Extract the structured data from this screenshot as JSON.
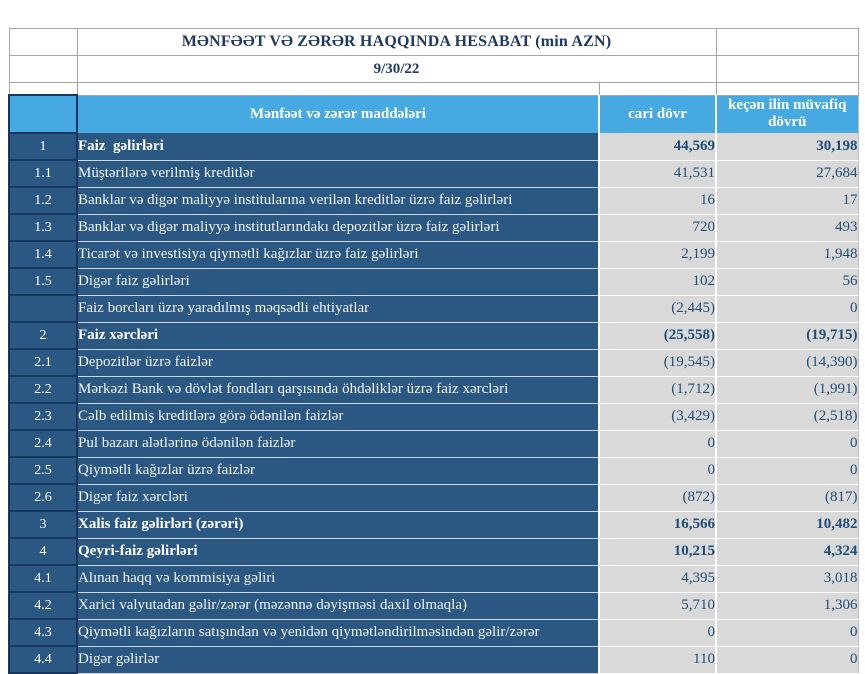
{
  "report": {
    "title": "MƏNFƏƏT VƏ ZƏRƏR HAQQINDA HESABAT (min AZN)",
    "date": "9/30/22"
  },
  "columns": {
    "items": "Mənfəət və zərər maddələri",
    "current": "cari dövr",
    "previous": "keçən ilin müvafiq dövrü"
  },
  "colors": {
    "header_blue": "#47A9E2",
    "row_navy": "#2B5783",
    "dark_border": "#17375E",
    "value_gray": "#D9D9D9",
    "value_text_navy": "#1F4E79",
    "title_text_navy": "#1F3864"
  },
  "rows": [
    {
      "no": "1",
      "label": "Faiz  gəlirləri",
      "current": "44,569",
      "previous": "30,198",
      "bold": true
    },
    {
      "no": "1.1",
      "label": "Müştərilərə verilmiş kreditlər",
      "current": "41,531",
      "previous": "27,684",
      "bold": false
    },
    {
      "no": "1.2",
      "label": "Banklar və digər maliyyə institularına verilən kreditlər üzrə faiz gəlirləri",
      "current": "16",
      "previous": "17",
      "bold": false
    },
    {
      "no": "1.3",
      "label": "Banklar və digər maliyyə institutlarındakı depozitlər üzrə faiz gəlirləri",
      "current": "720",
      "previous": "493",
      "bold": false
    },
    {
      "no": "1.4",
      "label": "Ticarət və investisiya qiymətli kağızlar üzrə faiz gəlirləri",
      "current": "2,199",
      "previous": "1,948",
      "bold": false
    },
    {
      "no": "1.5",
      "label": "Digər faiz gəlirləri",
      "current": "102",
      "previous": "56",
      "bold": false
    },
    {
      "no": "",
      "label": "Faiz borcları üzrə yaradılmış məqsədli ehtiyatlar",
      "current": "(2,445)",
      "previous": "0",
      "bold": false
    },
    {
      "no": "2",
      "label": "Faiz xərcləri",
      "current": "(25,558)",
      "previous": "(19,715)",
      "bold": true
    },
    {
      "no": "2.1",
      "label": "Depozitlər üzrə faizlər",
      "current": "(19,545)",
      "previous": "(14,390)",
      "bold": false
    },
    {
      "no": "2.2",
      "label": "Mərkəzi Bank və dövlət fondları qarşısında öhdəliklər üzrə faiz xərcləri",
      "current": "(1,712)",
      "previous": "(1,991)",
      "bold": false
    },
    {
      "no": "2.3",
      "label": "Cəlb edilmiş kreditlərə görə ödənilən faizlər",
      "current": "(3,429)",
      "previous": "(2,518)",
      "bold": false
    },
    {
      "no": "2.4",
      "label": "Pul bazarı alətlərinə ödənilən faizlər",
      "current": "0",
      "previous": "0",
      "bold": false
    },
    {
      "no": "2.5",
      "label": "Qiymətli kağızlar üzrə faizlər",
      "current": "0",
      "previous": "0",
      "bold": false
    },
    {
      "no": "2.6",
      "label": "Digər faiz xərcləri",
      "current": "(872)",
      "previous": "(817)",
      "bold": false
    },
    {
      "no": "3",
      "label": "Xalis faiz gəlirləri (zərəri)",
      "current": "16,566",
      "previous": "10,482",
      "bold": true
    },
    {
      "no": "4",
      "label": "Qeyri-faiz gəlirləri",
      "current": "10,215",
      "previous": "4,324",
      "bold": true
    },
    {
      "no": "4.1",
      "label": "Alınan haqq və kommisiya gəliri",
      "current": "4,395",
      "previous": "3,018",
      "bold": false
    },
    {
      "no": "4.2",
      "label": "Xarici valyutadan gəlir/zərər (məzənnə dəyişməsi daxil olmaqla)",
      "current": "5,710",
      "previous": "1,306",
      "bold": false
    },
    {
      "no": "4.3",
      "label": "Qiymətli kağızların satışından və yenidən qiymətləndirilməsindən gəlir/zərər",
      "current": "0",
      "previous": "0",
      "bold": false
    },
    {
      "no": "4.4",
      "label": "Digər gəlirlər",
      "current": "110",
      "previous": "0",
      "bold": false
    }
  ]
}
